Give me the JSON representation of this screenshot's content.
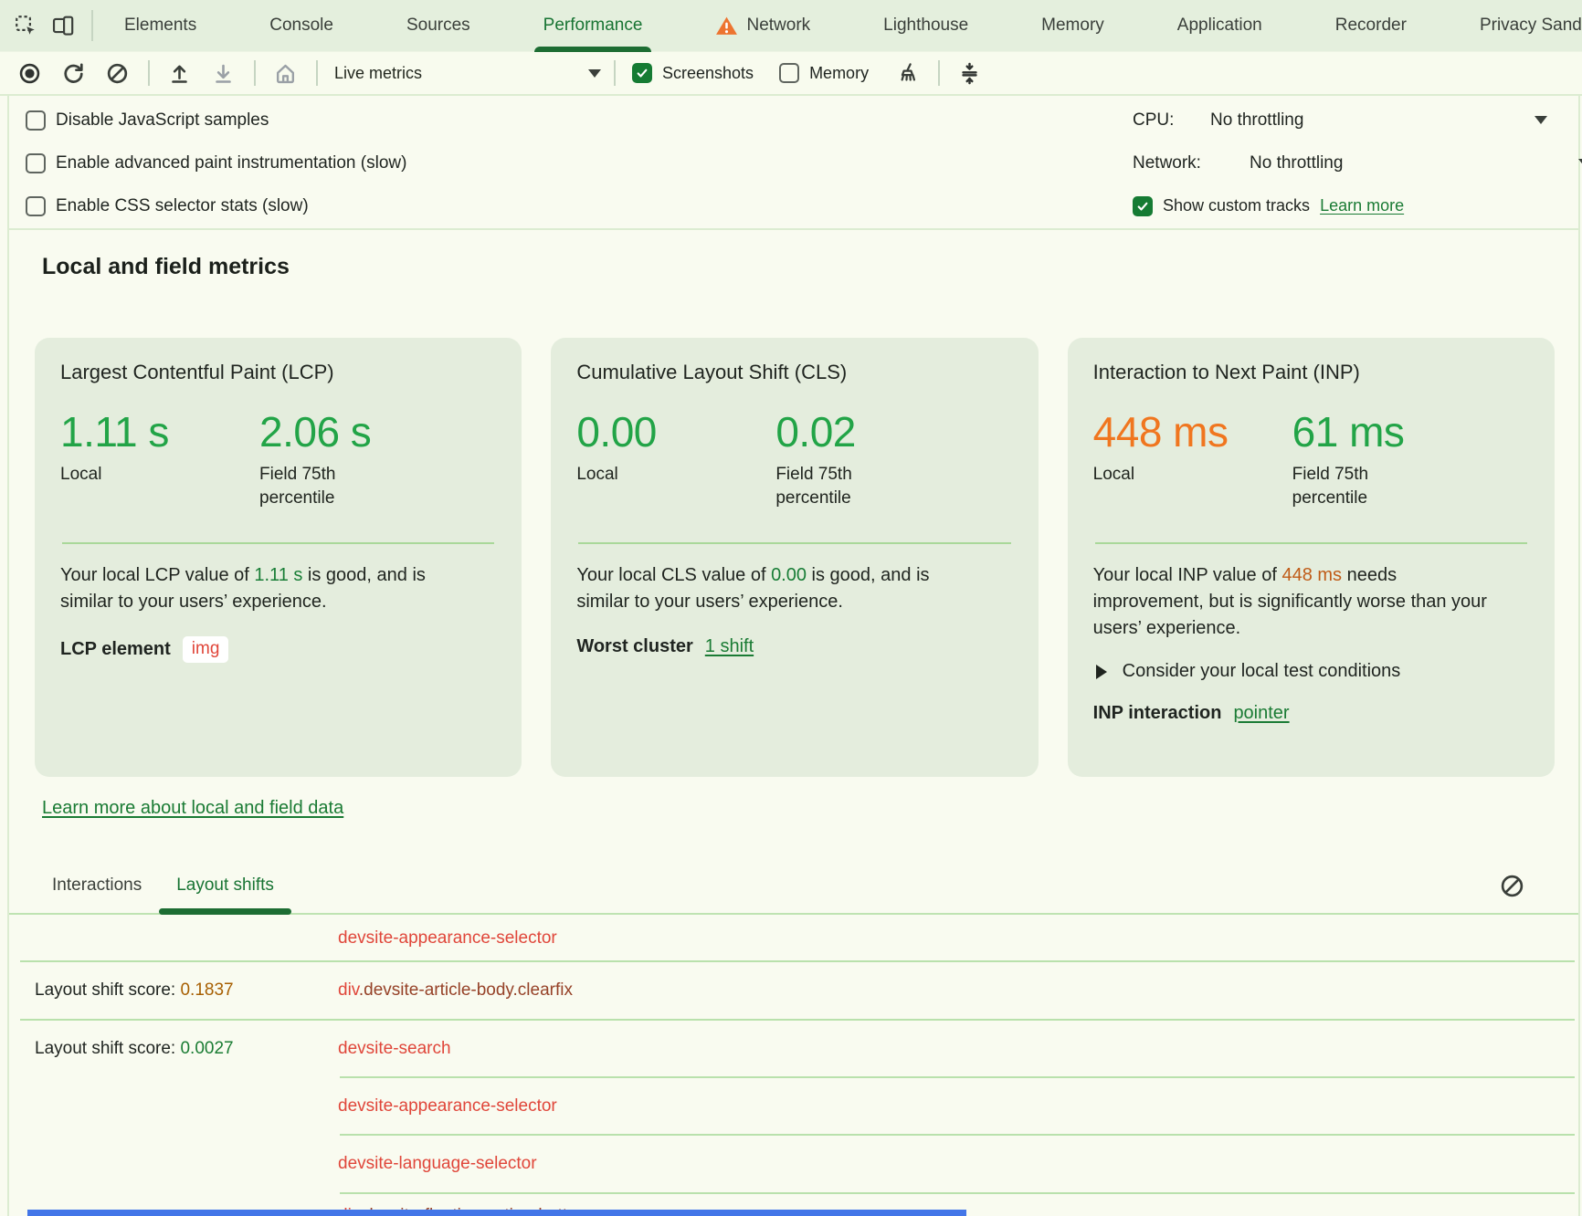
{
  "colors": {
    "accent_green": "#187433",
    "dark_green_bar": "#1d6d33",
    "value_good_green": "#22a447",
    "value_warn_orange": "#f0761f",
    "inline_good_green": "#187d36",
    "inline_warn_orange": "#c05c18",
    "score_warn": "#a75f02",
    "score_good": "#1a7c33",
    "element_link_red": "#e0463a",
    "element_link_brown": "#964228",
    "card_background": "#e4eddd",
    "tabbar_background": "#e4efdd",
    "warning_orange": "#ed7430",
    "blue_bar": "#4376e8"
  },
  "tabbar": {
    "tabs": [
      {
        "label": "Elements",
        "active": false,
        "warning": false
      },
      {
        "label": "Console",
        "active": false,
        "warning": false
      },
      {
        "label": "Sources",
        "active": false,
        "warning": false
      },
      {
        "label": "Performance",
        "active": true,
        "warning": false
      },
      {
        "label": "Network",
        "active": false,
        "warning": true
      },
      {
        "label": "Lighthouse",
        "active": false,
        "warning": false
      },
      {
        "label": "Memory",
        "active": false,
        "warning": false
      },
      {
        "label": "Application",
        "active": false,
        "warning": false
      },
      {
        "label": "Recorder",
        "active": false,
        "warning": false
      },
      {
        "label": "Privacy Sand",
        "active": false,
        "warning": false
      }
    ]
  },
  "toolbar": {
    "live_metrics_label": "Live metrics",
    "screenshots": {
      "label": "Screenshots",
      "checked": true
    },
    "memory": {
      "label": "Memory",
      "checked": false
    }
  },
  "settings": {
    "checkboxes": [
      {
        "label": "Disable JavaScript samples",
        "checked": false
      },
      {
        "label": "Enable advanced paint instrumentation (slow)",
        "checked": false
      },
      {
        "label": "Enable CSS selector stats (slow)",
        "checked": false
      }
    ],
    "cpu_label": "CPU:",
    "cpu_value": "No throttling",
    "network_label": "Network:",
    "network_value": "No throttling",
    "custom_tracks": {
      "label": "Show custom tracks",
      "checked": true,
      "link": "Learn more"
    }
  },
  "metrics": {
    "heading": "Local and field metrics",
    "learn_more_link": "Learn more about local and field data",
    "cards": [
      {
        "key": "lcp",
        "title": "Largest Contentful Paint (LCP)",
        "local": {
          "value": "1.11 s",
          "label": "Local",
          "status": "good"
        },
        "field": {
          "value": "2.06 s",
          "label": "Field 75th percentile",
          "status": "good"
        },
        "desc": {
          "before": "Your local LCP value of ",
          "value": "1.11 s",
          "value_status": "good",
          "after": " is good, and is similar to your users’ experience."
        },
        "footer": {
          "label": "LCP element",
          "type": "chip",
          "value": "img"
        }
      },
      {
        "key": "cls",
        "title": "Cumulative Layout Shift (CLS)",
        "local": {
          "value": "0.00",
          "label": "Local",
          "status": "good"
        },
        "field": {
          "value": "0.02",
          "label": "Field 75th percentile",
          "status": "good"
        },
        "desc": {
          "before": "Your local CLS value of ",
          "value": "0.00",
          "value_status": "good",
          "after": " is good, and is similar to your users’ experience."
        },
        "footer": {
          "label": "Worst cluster",
          "type": "link",
          "value": "1 shift"
        }
      },
      {
        "key": "inp",
        "title": "Interaction to Next Paint (INP)",
        "local": {
          "value": "448 ms",
          "label": "Local",
          "status": "warn"
        },
        "field": {
          "value": "61 ms",
          "label": "Field 75th percentile",
          "status": "good"
        },
        "desc": {
          "before": "Your local INP value of ",
          "value": "448 ms",
          "value_status": "warn",
          "after": " needs improvement, but is significantly worse than your users’ experience."
        },
        "consider": "Consider your local test conditions",
        "footer": {
          "label": "INP interaction",
          "type": "link",
          "value": "pointer"
        }
      }
    ]
  },
  "logs": {
    "tabs": [
      {
        "label": "Interactions",
        "active": false
      },
      {
        "label": "Layout shifts",
        "active": true
      }
    ],
    "rows": [
      {
        "score_label": "",
        "score_value": "",
        "score_status": "",
        "element": [
          {
            "text": "devsite-appearance-selector",
            "style": "red"
          }
        ],
        "separator": "full",
        "partial": false
      },
      {
        "score_label": "Layout shift score: ",
        "score_value": "0.1837",
        "score_status": "warn",
        "element": [
          {
            "text": "div",
            "style": "red"
          },
          {
            "text": ".devsite-article-body.clearfix",
            "style": "brown"
          }
        ],
        "separator": "full",
        "partial": false
      },
      {
        "score_label": "Layout shift score: ",
        "score_value": "0.0027",
        "score_status": "good",
        "element": [
          {
            "text": "devsite-search",
            "style": "red"
          }
        ],
        "separator": "indent",
        "partial": false
      },
      {
        "score_label": "",
        "score_value": "",
        "score_status": "",
        "element": [
          {
            "text": "devsite-appearance-selector",
            "style": "red"
          }
        ],
        "separator": "indent",
        "partial": false
      },
      {
        "score_label": "",
        "score_value": "",
        "score_status": "",
        "element": [
          {
            "text": "devsite-language-selector",
            "style": "red"
          }
        ],
        "separator": "indent",
        "partial": false
      },
      {
        "score_label": "",
        "score_value": "",
        "score_status": "",
        "element": [
          {
            "text": "div",
            "style": "red"
          },
          {
            "text": ".devsite-floating-action-buttons",
            "style": "brown"
          }
        ],
        "separator": "none",
        "partial": true
      }
    ]
  }
}
